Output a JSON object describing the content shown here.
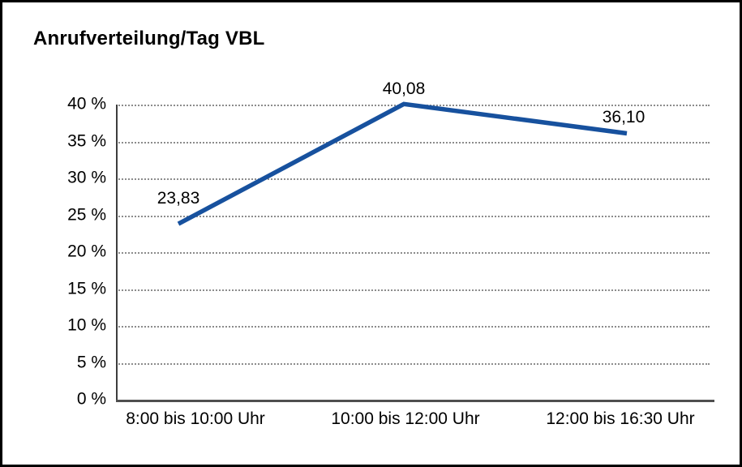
{
  "chart_data": {
    "type": "line",
    "title": "Anrufverteilung/Tag VBL",
    "categories": [
      "8:00 bis 10:00 Uhr",
      "10:00 bis 12:00 Uhr",
      "12:00 bis 16:30 Uhr"
    ],
    "values": [
      23.83,
      40.08,
      36.1
    ],
    "value_labels": [
      "23,83",
      "40,08",
      "36,10"
    ],
    "xlabel": "",
    "ylabel": "",
    "ylim": [
      0,
      40
    ],
    "ytick_step": 5,
    "ytick_labels": [
      "0 %",
      "5 %",
      "10 %",
      "15 %",
      "20 %",
      "25 %",
      "30 %",
      "35 %",
      "40 %"
    ],
    "grid": "horizontal-dotted",
    "legend": "none",
    "colors": {
      "line": "#17519E",
      "text": "#000000",
      "gridline": "#8c8c8c",
      "axis": "#404040",
      "frame_border": "#000000",
      "background": "#ffffff"
    }
  }
}
